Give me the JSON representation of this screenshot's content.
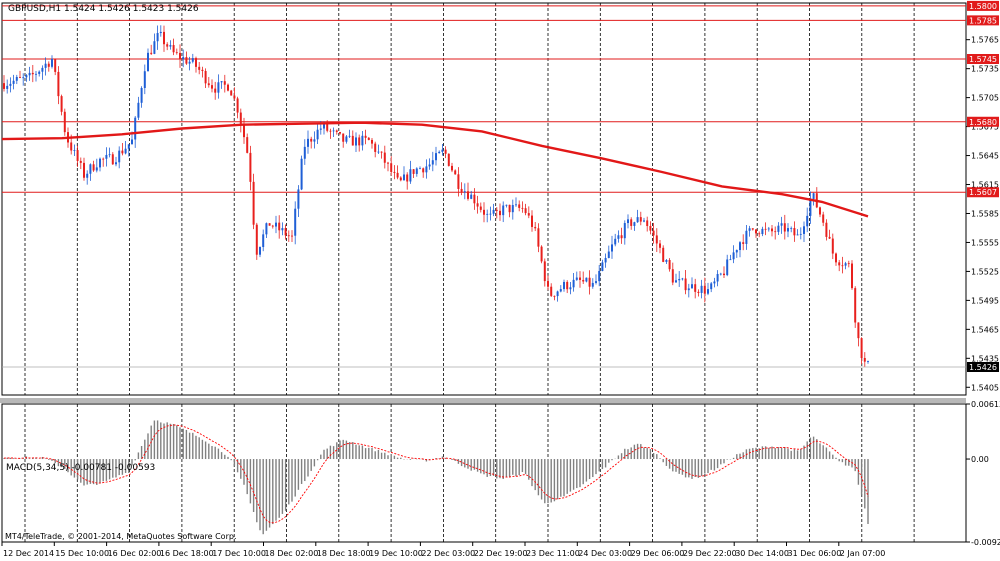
{
  "header": {
    "symbol_line": "GBPUSD,H1  1.5424 1.5426 1.5423 1.5426"
  },
  "indicator": {
    "label": "MACD(5,34,5) -0.00781 -0.00593"
  },
  "footer": {
    "copyright": "MT4/TeleTrade, © 2001-2014, MetaQuotes Software Corp."
  },
  "colors": {
    "bull": "#1f5fd6",
    "bear": "#e8201d",
    "ma": "#e21818",
    "level": "#e11b1b",
    "grid": "#000000",
    "macd_hist": "#808080",
    "signal": "#ff0000"
  },
  "chart_data": [
    {
      "type": "candlestick",
      "symbol": "GBPUSD",
      "timeframe": "H1",
      "y_ticks": [
        "1.5800",
        "1.5785",
        "1.5765",
        "1.5735",
        "1.5705",
        "1.5675",
        "1.5645",
        "1.5615",
        "1.5585",
        "1.5555",
        "1.5525",
        "1.5495",
        "1.5465",
        "1.5435",
        "1.5405"
      ],
      "ylim": [
        1.5397,
        1.5803
      ],
      "x_labels": [
        "12 Dec 2014",
        "15 Dec 10:00",
        "16 Dec 02:00",
        "16 Dec 18:00",
        "17 Dec 10:00",
        "18 Dec 02:00",
        "18 Dec 18:00",
        "19 Dec 10:00",
        "22 Dec 03:00",
        "22 Dec 19:00",
        "23 Dec 11:00",
        "24 Dec 03:00",
        "29 Dec 06:00",
        "29 Dec 22:00",
        "30 Dec 14:00",
        "31 Dec 06:00",
        "2 Jan 07:00"
      ],
      "current_price": "1.5426",
      "levels": [
        {
          "value": 1.58,
          "label": "1.5800"
        },
        {
          "value": 1.5785,
          "label": "1.5785"
        },
        {
          "value": 1.5745,
          "label": "1.5745"
        },
        {
          "value": 1.568,
          "label": "1.5680"
        },
        {
          "value": 1.5607,
          "label": "1.5607"
        }
      ],
      "ma": [
        [
          0,
          1.5662
        ],
        [
          60,
          1.5663
        ],
        [
          120,
          1.5667
        ],
        [
          180,
          1.5673
        ],
        [
          240,
          1.5677
        ],
        [
          300,
          1.5678
        ],
        [
          360,
          1.5679
        ],
        [
          420,
          1.5677
        ],
        [
          480,
          1.567
        ],
        [
          540,
          1.5655
        ],
        [
          600,
          1.5642
        ],
        [
          660,
          1.5628
        ],
        [
          720,
          1.5613
        ],
        [
          780,
          1.5605
        ],
        [
          820,
          1.5597
        ],
        [
          866,
          1.5582
        ]
      ],
      "anchors": [
        [
          0,
          1.572
        ],
        [
          25,
          1.5725
        ],
        [
          48,
          1.5745
        ],
        [
          62,
          1.5665
        ],
        [
          80,
          1.5625
        ],
        [
          95,
          1.564
        ],
        [
          110,
          1.5642
        ],
        [
          128,
          1.566
        ],
        [
          142,
          1.5745
        ],
        [
          155,
          1.577
        ],
        [
          170,
          1.575
        ],
        [
          190,
          1.574
        ],
        [
          210,
          1.5715
        ],
        [
          225,
          1.5718
        ],
        [
          235,
          1.569
        ],
        [
          245,
          1.564
        ],
        [
          252,
          1.5545
        ],
        [
          265,
          1.5575
        ],
        [
          288,
          1.556
        ],
        [
          300,
          1.5655
        ],
        [
          318,
          1.5675
        ],
        [
          340,
          1.566
        ],
        [
          365,
          1.566
        ],
        [
          380,
          1.564
        ],
        [
          395,
          1.5615
        ],
        [
          410,
          1.563
        ],
        [
          425,
          1.5635
        ],
        [
          440,
          1.565
        ],
        [
          455,
          1.5615
        ],
        [
          470,
          1.56
        ],
        [
          485,
          1.558
        ],
        [
          500,
          1.559
        ],
        [
          520,
          1.559
        ],
        [
          530,
          1.557
        ],
        [
          545,
          1.55
        ],
        [
          560,
          1.551
        ],
        [
          575,
          1.5515
        ],
        [
          590,
          1.551
        ],
        [
          610,
          1.5555
        ],
        [
          625,
          1.5575
        ],
        [
          640,
          1.558
        ],
        [
          655,
          1.555
        ],
        [
          670,
          1.5515
        ],
        [
          685,
          1.551
        ],
        [
          705,
          1.5505
        ],
        [
          720,
          1.5525
        ],
        [
          735,
          1.5555
        ],
        [
          750,
          1.557
        ],
        [
          765,
          1.5565
        ],
        [
          780,
          1.557
        ],
        [
          795,
          1.556
        ],
        [
          808,
          1.5605
        ],
        [
          820,
          1.5575
        ],
        [
          830,
          1.554
        ],
        [
          846,
          1.553
        ],
        [
          853,
          1.546
        ],
        [
          860,
          1.543
        ],
        [
          865,
          1.5426
        ]
      ]
    },
    {
      "type": "bar",
      "name": "MACD(5,34,5)",
      "value": "-0.00781",
      "signal_value": "-0.00593",
      "y_ticks": [
        "0.00613",
        "0.00",
        "-0.00924"
      ],
      "ylim": [
        -0.00924,
        0.00613
      ],
      "anchors": [
        [
          0,
          0.0002
        ],
        [
          40,
          0.0001
        ],
        [
          60,
          -0.001
        ],
        [
          80,
          -0.003
        ],
        [
          100,
          -0.0026
        ],
        [
          125,
          -0.0014
        ],
        [
          140,
          0.002
        ],
        [
          150,
          0.0044
        ],
        [
          170,
          0.0038
        ],
        [
          200,
          0.0022
        ],
        [
          225,
          0.0003
        ],
        [
          240,
          -0.003
        ],
        [
          258,
          -0.0085
        ],
        [
          280,
          -0.006
        ],
        [
          300,
          -0.0025
        ],
        [
          320,
          0.001
        ],
        [
          340,
          0.0022
        ],
        [
          360,
          0.0014
        ],
        [
          380,
          0.0007
        ],
        [
          400,
          0.0
        ],
        [
          420,
          -0.0002
        ],
        [
          440,
          0.0003
        ],
        [
          460,
          -0.0008
        ],
        [
          480,
          -0.0018
        ],
        [
          500,
          -0.0022
        ],
        [
          520,
          -0.0015
        ],
        [
          540,
          -0.005
        ],
        [
          560,
          -0.0042
        ],
        [
          580,
          -0.0028
        ],
        [
          600,
          -0.001
        ],
        [
          620,
          0.001
        ],
        [
          635,
          0.0017
        ],
        [
          650,
          0.0008
        ],
        [
          670,
          -0.0015
        ],
        [
          690,
          -0.0022
        ],
        [
          710,
          -0.0012
        ],
        [
          730,
          0.0003
        ],
        [
          745,
          0.0011
        ],
        [
          765,
          0.0014
        ],
        [
          780,
          0.0013
        ],
        [
          795,
          0.0008
        ],
        [
          808,
          0.0026
        ],
        [
          822,
          0.0012
        ],
        [
          835,
          -0.0003
        ],
        [
          850,
          -0.001
        ],
        [
          860,
          -0.005
        ],
        [
          865,
          -0.0078
        ]
      ]
    }
  ]
}
